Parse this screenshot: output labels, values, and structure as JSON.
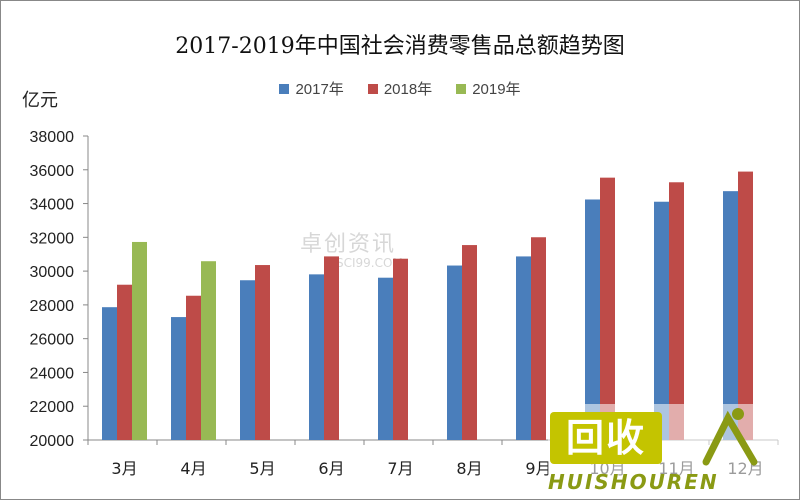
{
  "unit_label": "亿元",
  "watermark": {
    "name": "卓创资讯",
    "site": "SCI99.COM"
  },
  "logo": {
    "mark_text": "回收",
    "brand_text": "HUISHOUREN"
  },
  "colors": {
    "2017": "#4a7ebb",
    "2018": "#be4b48",
    "2019": "#98b954"
  },
  "chart_data": {
    "type": "bar",
    "title": "2017-2019年中国社会消费零售品总额趋势图",
    "xlabel": "",
    "ylabel": "亿元",
    "categories": [
      "3月",
      "4月",
      "5月",
      "6月",
      "7月",
      "8月",
      "9月",
      "10月",
      "11月",
      "12月"
    ],
    "series": [
      {
        "name": "2017年",
        "values": [
          27864,
          27279,
          29459,
          29808,
          29610,
          30330,
          30870,
          34241,
          34108,
          34734
        ]
      },
      {
        "name": "2018年",
        "values": [
          29194,
          28542,
          30359,
          30871,
          30734,
          31542,
          32005,
          35534,
          35260,
          35893
        ]
      },
      {
        "name": "2019年",
        "values": [
          31726,
          30586,
          null,
          null,
          null,
          null,
          null,
          null,
          null,
          null
        ]
      }
    ],
    "ylim": [
      20000,
      38000
    ],
    "yticks": [
      20000,
      22000,
      24000,
      26000,
      28000,
      30000,
      32000,
      34000,
      36000,
      38000
    ],
    "legend_position": "top",
    "grid": false
  }
}
